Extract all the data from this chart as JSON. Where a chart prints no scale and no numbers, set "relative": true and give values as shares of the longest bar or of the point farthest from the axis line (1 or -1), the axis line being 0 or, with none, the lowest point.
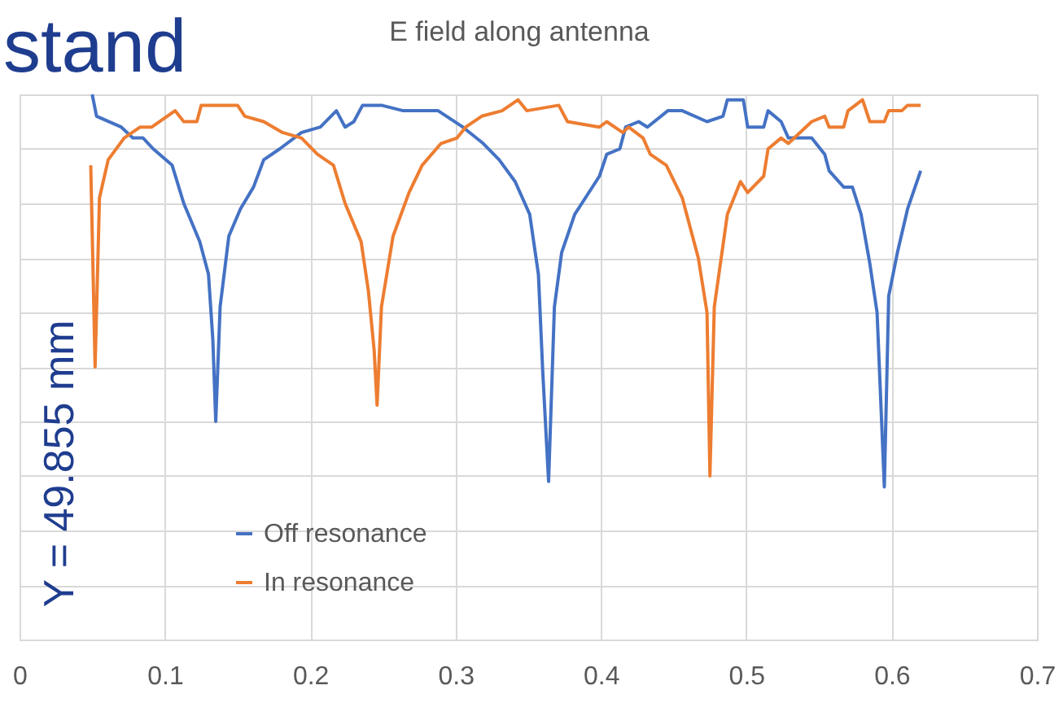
{
  "chart_data": {
    "type": "line",
    "title": "E field along antenna",
    "ylabel": "Y = 49.855 mm",
    "annotations": [
      "stand"
    ],
    "relative": true,
    "xlim": [
      0,
      0.7
    ],
    "xticks": [
      0,
      0.1,
      0.2,
      0.3,
      0.4,
      0.5,
      0.6,
      0.7
    ],
    "grid": true,
    "legend": "bottom left",
    "marker": "none",
    "line_style": "solid",
    "series": [
      {
        "name": "Off resonance",
        "color": "#4472c4",
        "x": [
          0.05,
          0.053,
          0.07,
          0.078,
          0.085,
          0.092,
          0.105,
          0.113,
          0.124,
          0.13,
          0.133,
          0.135,
          0.138,
          0.144,
          0.152,
          0.161,
          0.168,
          0.179,
          0.194,
          0.207,
          0.218,
          0.224,
          0.23,
          0.236,
          0.249,
          0.264,
          0.275,
          0.288,
          0.305,
          0.319,
          0.33,
          0.341,
          0.351,
          0.357,
          0.36,
          0.364,
          0.368,
          0.373,
          0.382,
          0.399,
          0.404,
          0.413,
          0.417,
          0.426,
          0.432,
          0.446,
          0.456,
          0.473,
          0.484,
          0.487,
          0.498,
          0.501,
          0.512,
          0.515,
          0.524,
          0.529,
          0.545,
          0.554,
          0.557,
          0.567,
          0.573,
          0.579,
          0.585,
          0.59,
          0.595,
          0.598,
          0.604,
          0.611,
          0.62
        ],
        "values": [
          1.0,
          0.96,
          0.94,
          0.92,
          0.92,
          0.9,
          0.87,
          0.8,
          0.73,
          0.67,
          0.55,
          0.4,
          0.61,
          0.74,
          0.79,
          0.83,
          0.88,
          0.9,
          0.93,
          0.94,
          0.97,
          0.94,
          0.95,
          0.98,
          0.98,
          0.97,
          0.97,
          0.97,
          0.94,
          0.91,
          0.88,
          0.84,
          0.78,
          0.67,
          0.49,
          0.29,
          0.61,
          0.71,
          0.78,
          0.85,
          0.89,
          0.9,
          0.94,
          0.95,
          0.94,
          0.97,
          0.97,
          0.95,
          0.96,
          0.99,
          0.99,
          0.94,
          0.94,
          0.97,
          0.95,
          0.92,
          0.92,
          0.89,
          0.86,
          0.83,
          0.83,
          0.78,
          0.69,
          0.6,
          0.28,
          0.63,
          0.71,
          0.79,
          0.86
        ]
      },
      {
        "name": "In resonance",
        "color": "#ed7d31",
        "x": [
          0.049,
          0.052,
          0.055,
          0.061,
          0.072,
          0.083,
          0.091,
          0.107,
          0.113,
          0.122,
          0.125,
          0.15,
          0.155,
          0.168,
          0.181,
          0.194,
          0.205,
          0.216,
          0.224,
          0.235,
          0.24,
          0.244,
          0.246,
          0.249,
          0.257,
          0.268,
          0.277,
          0.29,
          0.301,
          0.307,
          0.318,
          0.332,
          0.343,
          0.349,
          0.371,
          0.377,
          0.399,
          0.404,
          0.415,
          0.419,
          0.429,
          0.434,
          0.445,
          0.456,
          0.467,
          0.473,
          0.475,
          0.478,
          0.487,
          0.496,
          0.501,
          0.512,
          0.515,
          0.524,
          0.529,
          0.545,
          0.554,
          0.557,
          0.567,
          0.57,
          0.58,
          0.585,
          0.595,
          0.598,
          0.607,
          0.611,
          0.62
        ],
        "values": [
          0.87,
          0.5,
          0.81,
          0.88,
          0.92,
          0.94,
          0.94,
          0.97,
          0.95,
          0.95,
          0.98,
          0.98,
          0.96,
          0.95,
          0.93,
          0.92,
          0.89,
          0.87,
          0.8,
          0.73,
          0.64,
          0.53,
          0.43,
          0.61,
          0.74,
          0.82,
          0.87,
          0.91,
          0.92,
          0.94,
          0.96,
          0.97,
          0.99,
          0.97,
          0.98,
          0.95,
          0.94,
          0.95,
          0.93,
          0.94,
          0.92,
          0.89,
          0.87,
          0.81,
          0.7,
          0.6,
          0.3,
          0.61,
          0.78,
          0.84,
          0.82,
          0.85,
          0.9,
          0.92,
          0.91,
          0.95,
          0.96,
          0.94,
          0.94,
          0.97,
          0.99,
          0.95,
          0.95,
          0.97,
          0.97,
          0.98,
          0.98
        ]
      }
    ]
  }
}
